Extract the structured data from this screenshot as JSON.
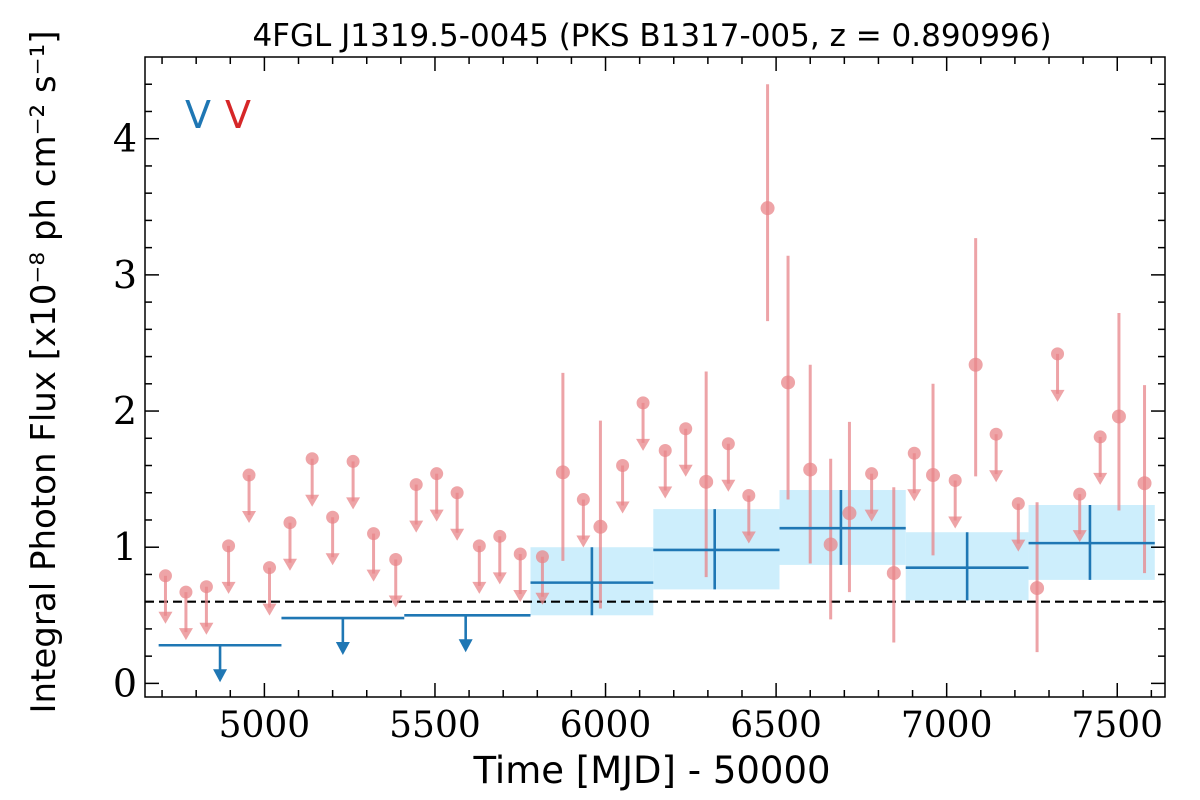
{
  "chart_data": {
    "type": "scatter",
    "title": "4FGL J1319.5-0045 (PKS B1317-005, z = 0.890996)",
    "xlabel": "Time [MJD] - 50000",
    "ylabel": "Integral Photon Flux [x10⁻⁸ ph cm⁻² s⁻¹]",
    "xlim": [
      4650,
      7640
    ],
    "ylim": [
      -0.1,
      4.6
    ],
    "xticks": [
      5000,
      5500,
      6000,
      6500,
      7000,
      7500
    ],
    "xtick_labels": [
      "5000",
      "5500",
      "6000",
      "6500",
      "7000",
      "7500"
    ],
    "yticks": [
      0,
      1,
      2,
      3,
      4
    ],
    "ytick_labels": [
      "0",
      "1",
      "2",
      "3",
      "4"
    ],
    "legend_symbols": [
      "V",
      "V"
    ],
    "legend_placement": "top-left",
    "colors": {
      "long_bins": "#1f77b4",
      "short_bins": "#e8858a",
      "band": "#cdeefc",
      "mean_line": "#000000"
    },
    "reference_line_y": 0.6,
    "series": [
      {
        "kind": "long_bins_upper_limits",
        "points": [
          {
            "x": 4870,
            "x0": 4690,
            "x1": 5050,
            "y": 0.28
          },
          {
            "x": 5230,
            "x0": 5050,
            "x1": 5410,
            "y": 0.48
          },
          {
            "x": 5590,
            "x0": 5410,
            "x1": 5780,
            "y": 0.5
          }
        ]
      },
      {
        "kind": "long_bins_detections",
        "points": [
          {
            "x": 5960,
            "x0": 5780,
            "x1": 6140,
            "y": 0.74,
            "ylo": 0.5,
            "yhi": 1.0
          },
          {
            "x": 6320,
            "x0": 6140,
            "x1": 6510,
            "y": 0.98,
            "ylo": 0.69,
            "yhi": 1.28
          },
          {
            "x": 6690,
            "x0": 6510,
            "x1": 6880,
            "y": 1.14,
            "ylo": 0.87,
            "yhi": 1.42
          },
          {
            "x": 7060,
            "x0": 6880,
            "x1": 7240,
            "y": 0.85,
            "ylo": 0.61,
            "yhi": 1.11
          },
          {
            "x": 7420,
            "x0": 7240,
            "x1": 7610,
            "y": 1.03,
            "ylo": 0.76,
            "yhi": 1.31
          }
        ]
      },
      {
        "kind": "short_bins_detections",
        "points": [
          {
            "x": 5875,
            "y": 1.55,
            "ylo": 0.9,
            "yhi": 2.28
          },
          {
            "x": 5985,
            "y": 1.15,
            "ylo": 0.55,
            "yhi": 1.93
          },
          {
            "x": 6295,
            "y": 1.48,
            "ylo": 0.78,
            "yhi": 2.29
          },
          {
            "x": 6475,
            "y": 3.49,
            "ylo": 2.66,
            "yhi": 4.4
          },
          {
            "x": 6535,
            "y": 2.21,
            "ylo": 1.35,
            "yhi": 3.14
          },
          {
            "x": 6600,
            "y": 1.57,
            "ylo": 0.88,
            "yhi": 2.34
          },
          {
            "x": 6660,
            "y": 1.02,
            "ylo": 0.47,
            "yhi": 1.65
          },
          {
            "x": 6715,
            "y": 1.25,
            "ylo": 0.67,
            "yhi": 1.92
          },
          {
            "x": 6845,
            "y": 0.81,
            "ylo": 0.3,
            "yhi": 1.44
          },
          {
            "x": 6960,
            "y": 1.53,
            "ylo": 0.94,
            "yhi": 2.2
          },
          {
            "x": 7085,
            "y": 2.34,
            "ylo": 1.52,
            "yhi": 3.27
          },
          {
            "x": 7265,
            "y": 0.7,
            "ylo": 0.23,
            "yhi": 1.33
          },
          {
            "x": 7505,
            "y": 1.96,
            "ylo": 1.27,
            "yhi": 2.72
          },
          {
            "x": 7580,
            "y": 1.47,
            "ylo": 0.81,
            "yhi": 2.19
          }
        ]
      },
      {
        "kind": "short_bins_upper_limits",
        "points": [
          {
            "x": 4710,
            "y": 0.79
          },
          {
            "x": 4770,
            "y": 0.67
          },
          {
            "x": 4830,
            "y": 0.71
          },
          {
            "x": 4895,
            "y": 1.01
          },
          {
            "x": 4955,
            "y": 1.53
          },
          {
            "x": 5015,
            "y": 0.85
          },
          {
            "x": 5075,
            "y": 1.18
          },
          {
            "x": 5140,
            "y": 1.65
          },
          {
            "x": 5200,
            "y": 1.22
          },
          {
            "x": 5260,
            "y": 1.63
          },
          {
            "x": 5320,
            "y": 1.1
          },
          {
            "x": 5385,
            "y": 0.91
          },
          {
            "x": 5445,
            "y": 1.46
          },
          {
            "x": 5505,
            "y": 1.54
          },
          {
            "x": 5565,
            "y": 1.4
          },
          {
            "x": 5630,
            "y": 1.01
          },
          {
            "x": 5690,
            "y": 1.08
          },
          {
            "x": 5750,
            "y": 0.95
          },
          {
            "x": 5815,
            "y": 0.93
          },
          {
            "x": 5935,
            "y": 1.35
          },
          {
            "x": 6050,
            "y": 1.6
          },
          {
            "x": 6110,
            "y": 2.06
          },
          {
            "x": 6175,
            "y": 1.71
          },
          {
            "x": 6235,
            "y": 1.87
          },
          {
            "x": 6360,
            "y": 1.76
          },
          {
            "x": 6420,
            "y": 1.38
          },
          {
            "x": 6780,
            "y": 1.54
          },
          {
            "x": 6905,
            "y": 1.69
          },
          {
            "x": 7025,
            "y": 1.49
          },
          {
            "x": 7145,
            "y": 1.83
          },
          {
            "x": 7210,
            "y": 1.32
          },
          {
            "x": 7325,
            "y": 2.42
          },
          {
            "x": 7390,
            "y": 1.39
          },
          {
            "x": 7450,
            "y": 1.81
          }
        ]
      }
    ]
  }
}
